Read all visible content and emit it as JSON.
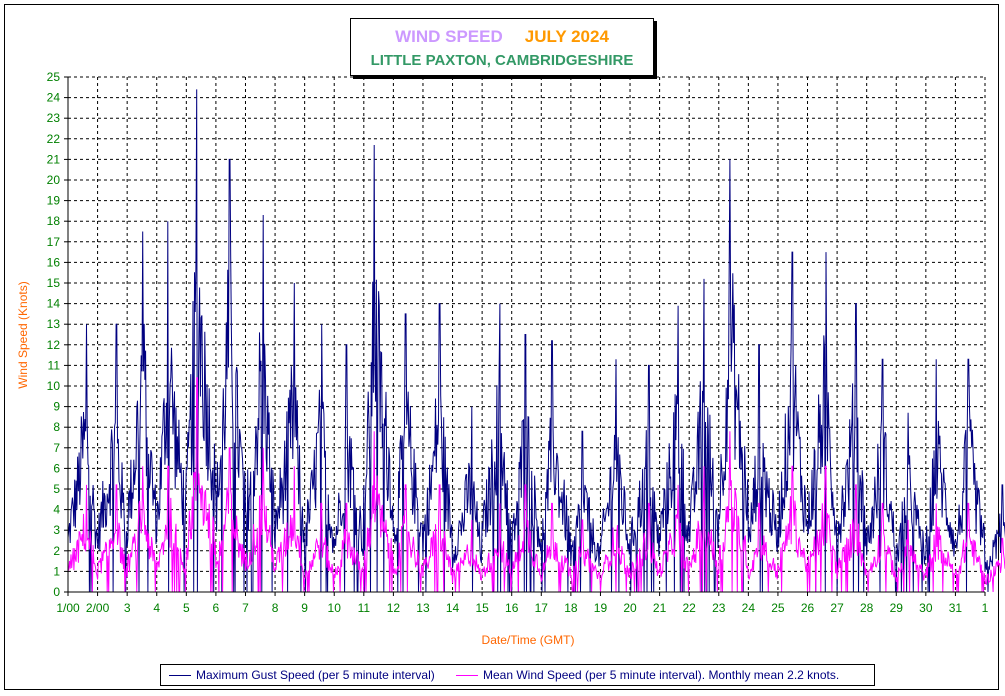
{
  "title": {
    "line1a": "WIND SPEED",
    "line1b": "JULY 2024",
    "line2": "LITTLE PAXTON, CAMBRIDGESHIRE"
  },
  "legend": {
    "gust": "Maximum Gust Speed (per 5 minute interval)",
    "mean": "Mean Wind Speed (per 5 minute interval). Monthly mean 2.2 knots."
  },
  "chart_data": {
    "type": "line",
    "xlabel": "Date/Time (GMT)",
    "ylabel": "Wind Speed (Knots)",
    "ylim": [
      0,
      25
    ],
    "yticks": [
      0,
      1,
      2,
      3,
      4,
      5,
      6,
      7,
      8,
      9,
      10,
      11,
      12,
      13,
      14,
      15,
      16,
      17,
      18,
      19,
      20,
      21,
      22,
      23,
      24,
      25
    ],
    "xlim": [
      1,
      32
    ],
    "x_tick_labels": [
      "1/00",
      "2/00",
      "3",
      "4",
      "5",
      "6",
      "7",
      "8",
      "9",
      "10",
      "11",
      "12",
      "13",
      "14",
      "15",
      "16",
      "17",
      "18",
      "19",
      "20",
      "21",
      "22",
      "23",
      "24",
      "25",
      "26",
      "27",
      "28",
      "29",
      "30",
      "31",
      "1"
    ],
    "grid": true,
    "x_unit": "day of month (July 2024); 32 = 1 August",
    "series": [
      {
        "name": "Maximum Gust Speed (per 5 minute interval)",
        "color": "#000080",
        "daily_profile": [
          {
            "day": 1,
            "min": 0,
            "max": 13
          },
          {
            "day": 2,
            "min": 0,
            "max": 13
          },
          {
            "day": 3,
            "min": 0,
            "max": 17.5
          },
          {
            "day": 4,
            "min": 0,
            "max": 18
          },
          {
            "day": 5,
            "min": 0,
            "max": 24.4
          },
          {
            "day": 6,
            "min": 0,
            "max": 21
          },
          {
            "day": 7,
            "min": 0,
            "max": 18.3
          },
          {
            "day": 8,
            "min": 0,
            "max": 15
          },
          {
            "day": 9,
            "min": 0,
            "max": 13
          },
          {
            "day": 10,
            "min": 0,
            "max": 12
          },
          {
            "day": 11,
            "min": 0,
            "max": 21.7
          },
          {
            "day": 12,
            "min": 0,
            "max": 13.5
          },
          {
            "day": 13,
            "min": 0,
            "max": 14
          },
          {
            "day": 14,
            "min": 0,
            "max": 9
          },
          {
            "day": 15,
            "min": 0,
            "max": 14
          },
          {
            "day": 16,
            "min": 0,
            "max": 12.5
          },
          {
            "day": 17,
            "min": 0,
            "max": 12.2
          },
          {
            "day": 18,
            "min": 0,
            "max": 7.8
          },
          {
            "day": 19,
            "min": 0,
            "max": 11.3
          },
          {
            "day": 20,
            "min": 0,
            "max": 11
          },
          {
            "day": 21,
            "min": 0,
            "max": 13.9
          },
          {
            "day": 22,
            "min": 0,
            "max": 15.2
          },
          {
            "day": 23,
            "min": 0,
            "max": 21
          },
          {
            "day": 24,
            "min": 0,
            "max": 12
          },
          {
            "day": 25,
            "min": 0,
            "max": 16.5
          },
          {
            "day": 26,
            "min": 0,
            "max": 16.5
          },
          {
            "day": 27,
            "min": 0,
            "max": 14
          },
          {
            "day": 28,
            "min": 0,
            "max": 11.3
          },
          {
            "day": 29,
            "min": 0,
            "max": 8.7
          },
          {
            "day": 30,
            "min": 0,
            "max": 11.3
          },
          {
            "day": 31,
            "min": 0,
            "max": 11.3
          },
          {
            "day": 32,
            "min": 0,
            "max": 5.2
          }
        ]
      },
      {
        "name": "Mean Wind Speed (per 5 minute interval). Monthly mean 2.2 knots.",
        "color": "#ff00ff",
        "daily_profile": [
          {
            "day": 1,
            "min": 0,
            "max": 5.2
          },
          {
            "day": 2,
            "min": 0,
            "max": 5.2
          },
          {
            "day": 3,
            "min": 0,
            "max": 6.1
          },
          {
            "day": 4,
            "min": 0,
            "max": 6.1
          },
          {
            "day": 5,
            "min": 0,
            "max": 10.4
          },
          {
            "day": 6,
            "min": 0,
            "max": 7
          },
          {
            "day": 7,
            "min": 0,
            "max": 7
          },
          {
            "day": 8,
            "min": 0,
            "max": 6.1
          },
          {
            "day": 9,
            "min": 0,
            "max": 4.3
          },
          {
            "day": 10,
            "min": 0,
            "max": 4.3
          },
          {
            "day": 11,
            "min": 0,
            "max": 7.8
          },
          {
            "day": 12,
            "min": 0,
            "max": 5.2
          },
          {
            "day": 13,
            "min": 0,
            "max": 5.2
          },
          {
            "day": 14,
            "min": 0,
            "max": 3.5
          },
          {
            "day": 15,
            "min": 0,
            "max": 4.3
          },
          {
            "day": 16,
            "min": 0,
            "max": 5.2
          },
          {
            "day": 17,
            "min": 0,
            "max": 4.3
          },
          {
            "day": 18,
            "min": 0,
            "max": 3.5
          },
          {
            "day": 19,
            "min": 0,
            "max": 4.3
          },
          {
            "day": 20,
            "min": 0,
            "max": 4.3
          },
          {
            "day": 21,
            "min": 0,
            "max": 5.2
          },
          {
            "day": 22,
            "min": 0,
            "max": 6.1
          },
          {
            "day": 23,
            "min": 0,
            "max": 7.8
          },
          {
            "day": 24,
            "min": 0,
            "max": 4.3
          },
          {
            "day": 25,
            "min": 0,
            "max": 6.1
          },
          {
            "day": 26,
            "min": 0,
            "max": 6.1
          },
          {
            "day": 27,
            "min": 0,
            "max": 5.2
          },
          {
            "day": 28,
            "min": 0,
            "max": 4.3
          },
          {
            "day": 29,
            "min": 0,
            "max": 3.5
          },
          {
            "day": 30,
            "min": 0,
            "max": 4.3
          },
          {
            "day": 31,
            "min": 0,
            "max": 4.3
          },
          {
            "day": 32,
            "min": 0,
            "max": 2.6
          }
        ]
      }
    ],
    "monthly_mean_knots": 2.2
  },
  "colors": {
    "title_wind": "#cc99ff",
    "title_month": "#ff9900",
    "title_place": "#339966",
    "axis_label": "#ff6600",
    "tick_label": "#008000",
    "grid": "#000000"
  }
}
